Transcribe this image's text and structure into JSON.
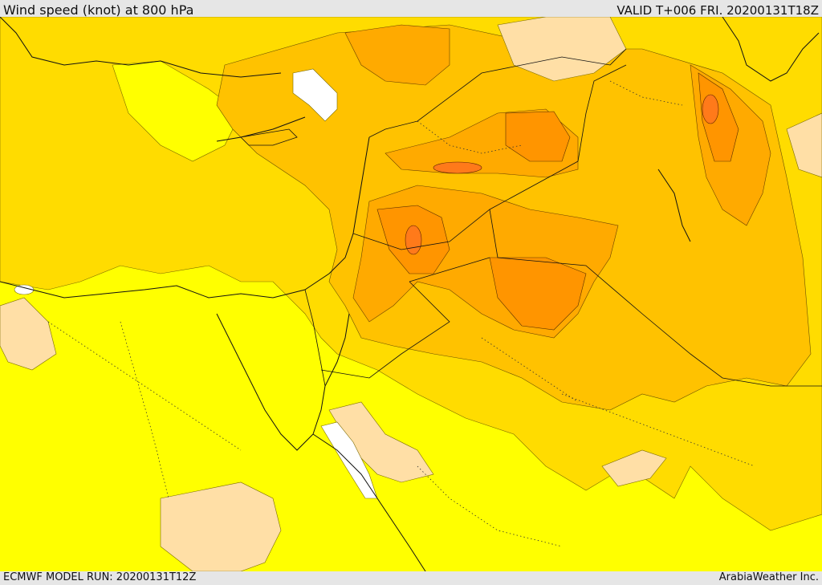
{
  "header": {
    "title": "Wind speed (knot) at 800 hPa",
    "valid_time": "VALID T+006 FRI. 20200131T18Z"
  },
  "footer": {
    "model_run": "ECMWF MODEL RUN: 20200131T12Z",
    "credit": "ArabiaWeather Inc."
  },
  "map": {
    "region": "Middle East / Eastern Mediterranean",
    "colors": {
      "calm_white": "#ffffff",
      "light_peach": "#ffdfa6",
      "yellow": "#ffff00",
      "gold": "#ffdc00",
      "light_orange": "#ffc200",
      "orange": "#ffaa00",
      "dark_orange": "#ff9500",
      "red_orange": "#ff7a1a",
      "border": "#222222"
    }
  }
}
